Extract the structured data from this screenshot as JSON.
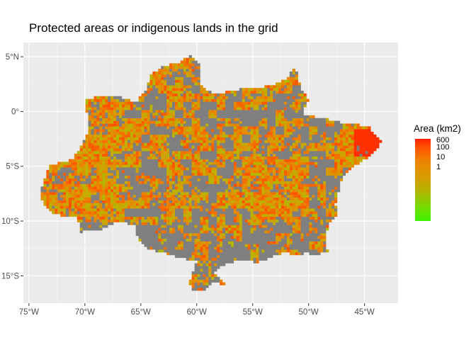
{
  "title": "Protected areas or indigenous lands in the grid",
  "axes": {
    "y_ticks": [
      {
        "value": 5,
        "label": "5°N"
      },
      {
        "value": 0,
        "label": "0°"
      },
      {
        "value": -5,
        "label": "5°S"
      },
      {
        "value": -10,
        "label": "10°S"
      },
      {
        "value": -15,
        "label": "15°S"
      }
    ],
    "x_ticks": [
      {
        "value": -75,
        "label": "75°W"
      },
      {
        "value": -70,
        "label": "70°W"
      },
      {
        "value": -65,
        "label": "65°W"
      },
      {
        "value": -60,
        "label": "60°W"
      },
      {
        "value": -55,
        "label": "55°W"
      },
      {
        "value": -50,
        "label": "50°W"
      },
      {
        "value": -45,
        "label": "45°W"
      }
    ],
    "xlim": [
      -75.5,
      -42
    ],
    "ylim": [
      -17.5,
      6.3
    ]
  },
  "legend": {
    "title": "Area (km2)",
    "labels": [
      "600",
      "100",
      "10",
      "1"
    ],
    "colors": {
      "high": "#ff2000",
      "mid": "#f08000",
      "low_mid": "#c8a800",
      "low": "#3cf000"
    }
  },
  "colors": {
    "panel_background": "#ebebeb",
    "grid_major": "#ffffff",
    "grid_minor": "#f5f5f5",
    "no_data_cell": "#7f7f7f"
  }
}
